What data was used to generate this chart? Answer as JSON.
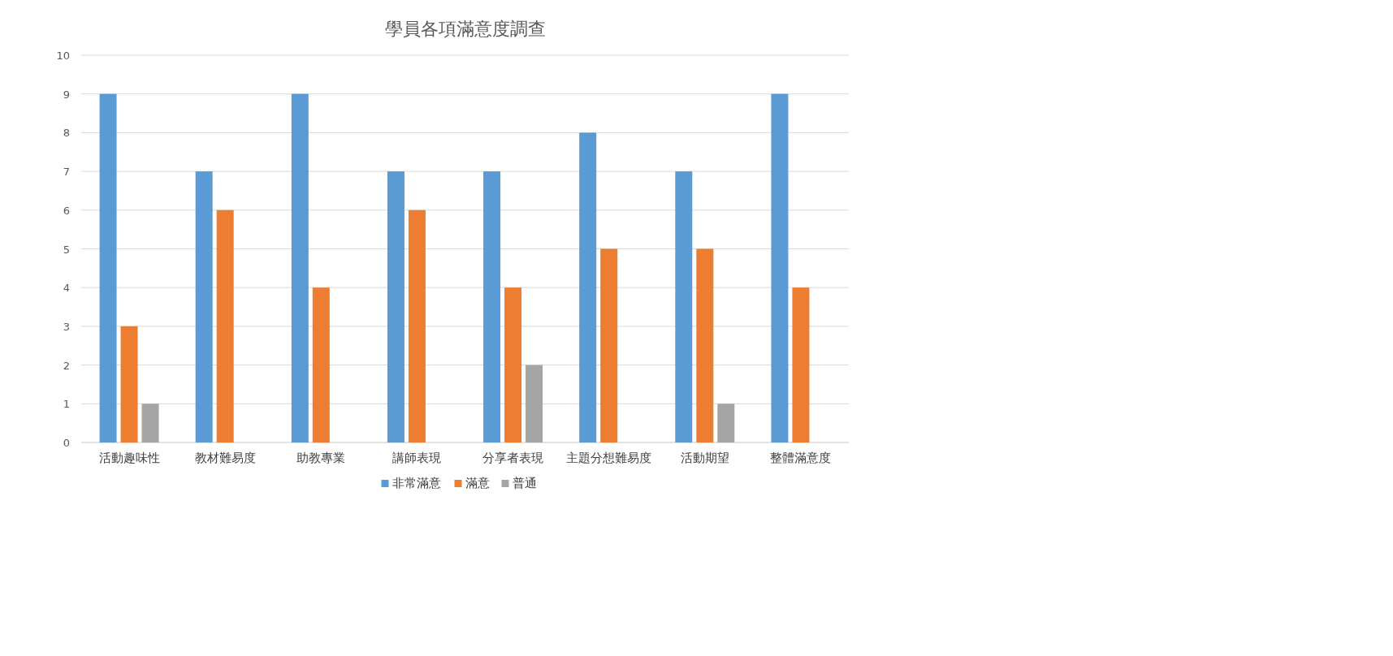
{
  "chart_data": {
    "type": "bar",
    "title": "學員各項滿意度調查",
    "categories": [
      "活動趣味性",
      "教材難易度",
      "助教專業",
      "講師表現",
      "分享者表現",
      "主題分想難易度",
      "活動期望",
      "整體滿意度"
    ],
    "series": [
      {
        "name": "非常滿意",
        "color": "#5b9bd5",
        "values": [
          9,
          7,
          9,
          7,
          7,
          8,
          7,
          9
        ]
      },
      {
        "name": "滿意",
        "color": "#ed7d31",
        "values": [
          3,
          6,
          4,
          6,
          4,
          5,
          5,
          4
        ]
      },
      {
        "name": "普通",
        "color": "#a5a5a5",
        "values": [
          1,
          null,
          null,
          null,
          2,
          null,
          1,
          null
        ]
      }
    ],
    "ylim": [
      0,
      10
    ],
    "yticks": [
      0,
      1,
      2,
      3,
      4,
      5,
      6,
      7,
      8,
      9,
      10
    ],
    "grid": "y",
    "legend": "bottom"
  }
}
